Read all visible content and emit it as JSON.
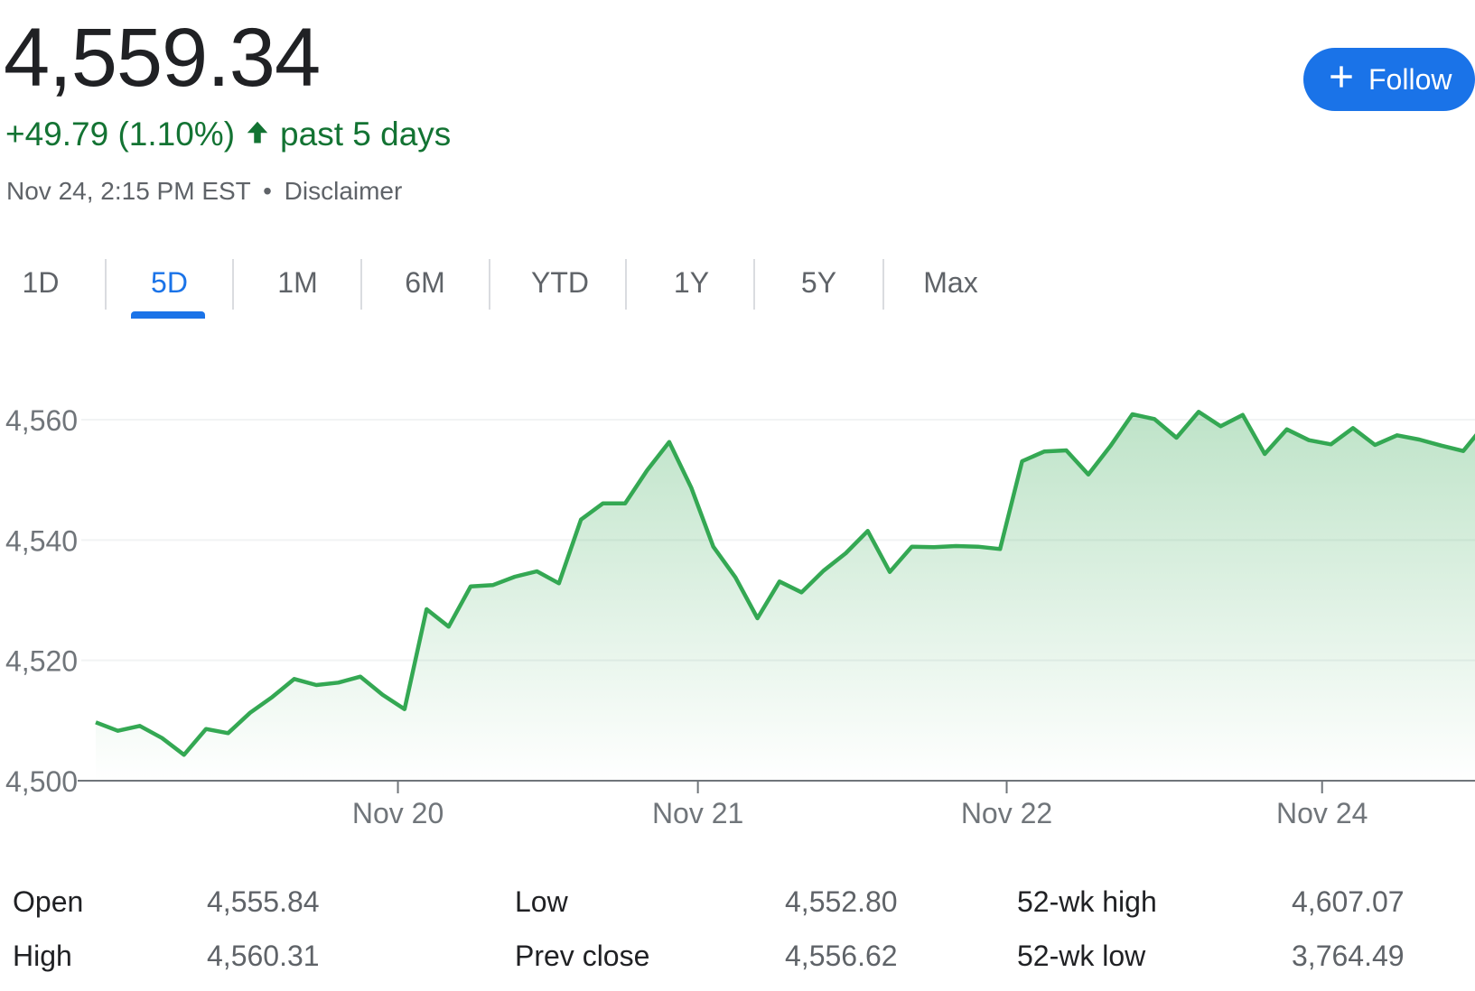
{
  "header": {
    "price": "4,559.34",
    "change": "+49.79 (1.10%)",
    "change_period": "past 5 days",
    "timestamp": "Nov 24, 2:15 PM EST",
    "separator": "•",
    "disclaimer": "Disclaimer",
    "up_arrow_icon": "arrow-up-icon",
    "change_color": "#137333"
  },
  "follow_button": {
    "label": "Follow",
    "icon": "plus-icon",
    "color": "#1a73e8"
  },
  "tabs": [
    {
      "label": "1D",
      "active": false
    },
    {
      "label": "5D",
      "active": true
    },
    {
      "label": "1M",
      "active": false
    },
    {
      "label": "6M",
      "active": false
    },
    {
      "label": "YTD",
      "active": false
    },
    {
      "label": "1Y",
      "active": false
    },
    {
      "label": "5Y",
      "active": false
    },
    {
      "label": "Max",
      "active": false
    }
  ],
  "chart_data": {
    "type": "area",
    "line_color": "#34a853",
    "y_ticks": [
      "4,560",
      "4,540",
      "4,520",
      "4,500"
    ],
    "y_tick_values": [
      4560,
      4540,
      4520,
      4500
    ],
    "ylim": [
      4500,
      4566
    ],
    "x_ticks": [
      "Nov 20",
      "Nov 21",
      "Nov 22",
      "Nov 24"
    ],
    "x_tick_positions": [
      13.7,
      27.3,
      41.3,
      55.6
    ],
    "xlim": [
      0,
      62
    ],
    "grid": true,
    "series": [
      {
        "values": [
          4509.7,
          4508.3,
          4509.1,
          4507.1,
          4504.3,
          4508.6,
          4507.9,
          4511.3,
          4513.9,
          4516.9,
          4515.9,
          4516.3,
          4517.3,
          4514.3,
          4511.9,
          4528.5,
          4525.6,
          4532.3,
          4532.5,
          4533.9,
          4534.8,
          4532.8,
          4543.4,
          4546.1,
          4546.1,
          4551.6,
          4556.3,
          4548.7,
          4538.9,
          4533.8,
          4527.0,
          4533.1,
          4531.3,
          4534.9,
          4537.8,
          4541.5,
          4534.7,
          4538.9,
          4538.8,
          4539.0,
          4538.9,
          4538.5,
          4553.1,
          4554.7,
          4554.9,
          4550.9,
          4555.6,
          4560.9,
          4560.1,
          4557.0,
          4561.3,
          4558.9,
          4560.8,
          4554.3,
          4558.4,
          4556.6,
          4555.9,
          4558.6,
          4555.8,
          4557.4,
          4556.7,
          4555.7,
          4554.8,
          4559.3
        ]
      }
    ]
  },
  "stats": [
    {
      "label": "Open",
      "value": "4,555.84"
    },
    {
      "label": "High",
      "value": "4,560.31"
    },
    {
      "label": "Low",
      "value": "4,552.80"
    },
    {
      "label": "Prev close",
      "value": "4,556.62"
    },
    {
      "label": "52-wk high",
      "value": "4,607.07"
    },
    {
      "label": "52-wk low",
      "value": "3,764.49"
    }
  ]
}
